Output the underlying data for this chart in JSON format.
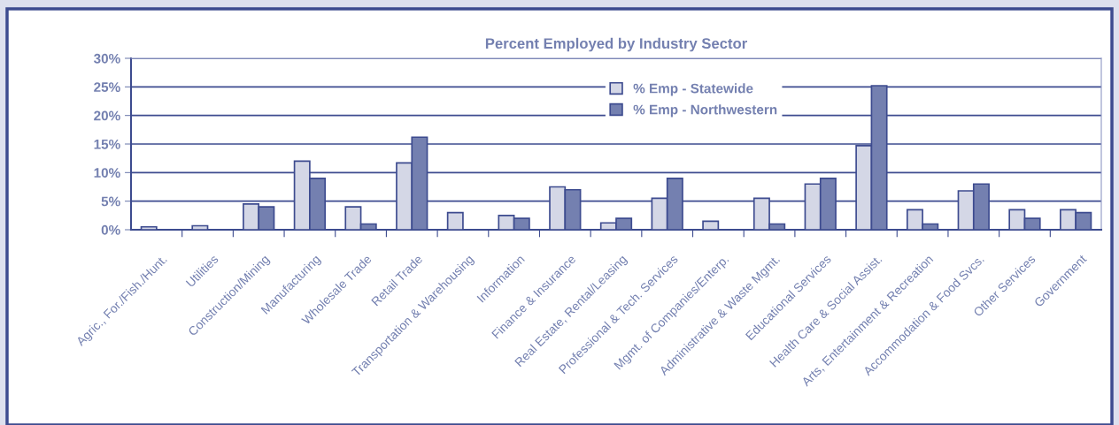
{
  "chart_data": {
    "type": "bar",
    "title": "Percent Employed by Industry Sector",
    "categories": [
      "Agric., For./Fish./Hunt.",
      "Utilities",
      "Construction/Mining",
      "Manufacturing",
      "Wholesale Trade",
      "Retail Trade",
      "Transportation & Warehousing",
      "Information",
      "Finance & Insurance",
      "Real Estate, Rental/Leasing",
      "Professional & Tech. Services",
      "Mgmt. of Companies/Enterp.",
      "Administrative & Waste Mgmt.",
      "Educational Services",
      "Health Care & Social Assist.",
      "Arts, Entertainment & Recreation",
      "Accommodation & Food Svcs.",
      "Other Services",
      "Government"
    ],
    "series": [
      {
        "name": "% Emp - Statewide",
        "color": "#d4d7e6",
        "values": [
          0.5,
          0.7,
          4.5,
          12,
          4,
          11.7,
          3,
          2.5,
          7.5,
          1.2,
          5.5,
          1.5,
          5.5,
          8,
          14.7,
          3.5,
          6.8,
          3.5,
          3.5
        ]
      },
      {
        "name": "% Emp - Northwestern",
        "color": "#7480b0",
        "values": [
          null,
          null,
          4,
          9,
          1,
          16.2,
          null,
          2,
          7,
          2,
          9,
          null,
          1,
          9,
          25.2,
          1,
          8,
          2,
          3
        ]
      }
    ],
    "ylim": [
      0,
      30
    ],
    "yticks": [
      {
        "value": 0,
        "label": "0%"
      },
      {
        "value": 5,
        "label": "5%"
      },
      {
        "value": 10,
        "label": "10%"
      },
      {
        "value": 15,
        "label": "15%"
      },
      {
        "value": 20,
        "label": "20%"
      },
      {
        "value": 25,
        "label": "25%"
      },
      {
        "value": 30,
        "label": "30%"
      }
    ],
    "grid": "y",
    "legend": "top"
  }
}
